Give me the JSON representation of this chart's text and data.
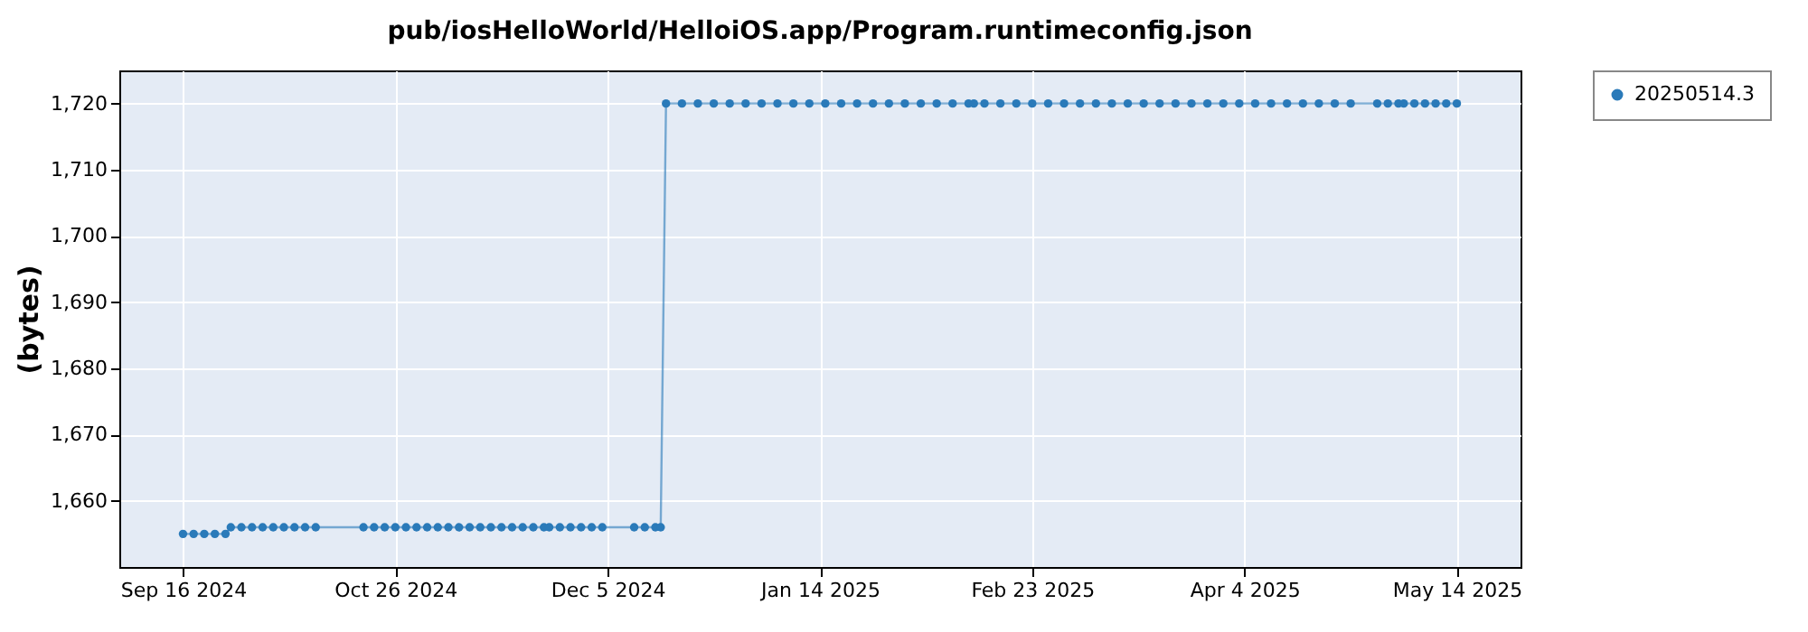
{
  "chart_data": {
    "type": "line",
    "title": "pub/iosHelloWorld/HelloiOS.app/Program.runtimeconfig.json",
    "ylabel": "(bytes)",
    "x": [
      "2024-09-16",
      "2024-09-18",
      "2024-09-20",
      "2024-09-22",
      "2024-09-24",
      "2024-09-25",
      "2024-09-27",
      "2024-09-29",
      "2024-10-01",
      "2024-10-03",
      "2024-10-05",
      "2024-10-07",
      "2024-10-09",
      "2024-10-11",
      "2024-10-20",
      "2024-10-22",
      "2024-10-24",
      "2024-10-26",
      "2024-10-28",
      "2024-10-30",
      "2024-11-01",
      "2024-11-03",
      "2024-11-05",
      "2024-11-07",
      "2024-11-09",
      "2024-11-11",
      "2024-11-13",
      "2024-11-15",
      "2024-11-17",
      "2024-11-19",
      "2024-11-21",
      "2024-11-23",
      "2024-11-24",
      "2024-11-26",
      "2024-11-28",
      "2024-11-30",
      "2024-12-02",
      "2024-12-04",
      "2024-12-10",
      "2024-12-12",
      "2024-12-14",
      "2024-12-15",
      "2024-12-16",
      "2024-12-19",
      "2024-12-22",
      "2024-12-25",
      "2024-12-28",
      "2024-12-31",
      "2025-01-03",
      "2025-01-06",
      "2025-01-09",
      "2025-01-12",
      "2025-01-15",
      "2025-01-18",
      "2025-01-21",
      "2025-01-24",
      "2025-01-27",
      "2025-01-30",
      "2025-02-02",
      "2025-02-05",
      "2025-02-08",
      "2025-02-11",
      "2025-02-12",
      "2025-02-14",
      "2025-02-17",
      "2025-02-20",
      "2025-02-23",
      "2025-02-26",
      "2025-03-01",
      "2025-03-04",
      "2025-03-07",
      "2025-03-10",
      "2025-03-13",
      "2025-03-16",
      "2025-03-19",
      "2025-03-22",
      "2025-03-25",
      "2025-03-28",
      "2025-03-31",
      "2025-04-03",
      "2025-04-06",
      "2025-04-09",
      "2025-04-12",
      "2025-04-15",
      "2025-04-18",
      "2025-04-21",
      "2025-04-24",
      "2025-04-29",
      "2025-05-01",
      "2025-05-03",
      "2025-05-04",
      "2025-05-06",
      "2025-05-08",
      "2025-05-10",
      "2025-05-12",
      "2025-05-14"
    ],
    "series": [
      {
        "name": "20250514.3",
        "color": "#2a7ab9",
        "values": [
          1655,
          1655,
          1655,
          1655,
          1655,
          1656,
          1656,
          1656,
          1656,
          1656,
          1656,
          1656,
          1656,
          1656,
          1656,
          1656,
          1656,
          1656,
          1656,
          1656,
          1656,
          1656,
          1656,
          1656,
          1656,
          1656,
          1656,
          1656,
          1656,
          1656,
          1656,
          1656,
          1656,
          1656,
          1656,
          1656,
          1656,
          1656,
          1656,
          1656,
          1656,
          1656,
          1720,
          1720,
          1720,
          1720,
          1720,
          1720,
          1720,
          1720,
          1720,
          1720,
          1720,
          1720,
          1720,
          1720,
          1720,
          1720,
          1720,
          1720,
          1720,
          1720,
          1720,
          1720,
          1720,
          1720,
          1720,
          1720,
          1720,
          1720,
          1720,
          1720,
          1720,
          1720,
          1720,
          1720,
          1720,
          1720,
          1720,
          1720,
          1720,
          1720,
          1720,
          1720,
          1720,
          1720,
          1720,
          1720,
          1720,
          1720,
          1720,
          1720,
          1720,
          1720,
          1720,
          1720
        ]
      }
    ],
    "xlim": [
      "2024-09-04",
      "2025-05-26"
    ],
    "xticks": [
      {
        "value": "2024-09-16",
        "label": "Sep 16 2024"
      },
      {
        "value": "2024-10-26",
        "label": "Oct 26 2024"
      },
      {
        "value": "2024-12-05",
        "label": "Dec 5 2024"
      },
      {
        "value": "2025-01-14",
        "label": "Jan 14 2025"
      },
      {
        "value": "2025-02-23",
        "label": "Feb 23 2025"
      },
      {
        "value": "2025-04-04",
        "label": "Apr 4 2025"
      },
      {
        "value": "2025-05-14",
        "label": "May 14 2025"
      }
    ],
    "ylim": [
      1650,
      1725
    ],
    "yticks": [
      {
        "value": 1660,
        "label": "1,660"
      },
      {
        "value": 1670,
        "label": "1,670"
      },
      {
        "value": 1680,
        "label": "1,680"
      },
      {
        "value": 1690,
        "label": "1,690"
      },
      {
        "value": 1700,
        "label": "1,700"
      },
      {
        "value": 1710,
        "label": "1,710"
      },
      {
        "value": 1720,
        "label": "1,720"
      }
    ],
    "grid": true,
    "legend": "right",
    "marker": "circle",
    "line_style": "solid"
  }
}
